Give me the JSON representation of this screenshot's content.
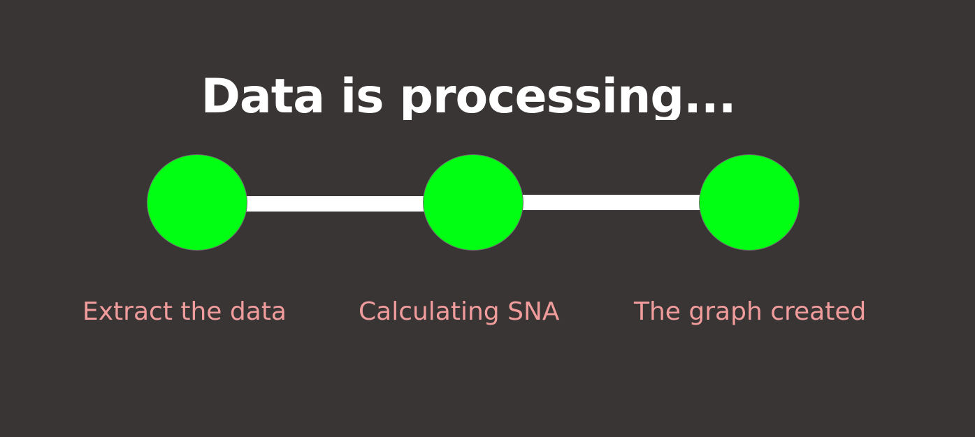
{
  "colors": {
    "background": "#3a3535",
    "title": "#ffffff",
    "connector": "#ffffff",
    "step_complete": "#00ff12",
    "label": "#f19c9c"
  },
  "header": {
    "title": "Data is processing..."
  },
  "progress": {
    "steps": [
      {
        "label": "Extract the data",
        "status": "complete"
      },
      {
        "label": "Calculating SNA",
        "status": "complete"
      },
      {
        "label": "The graph created",
        "status": "complete"
      }
    ]
  }
}
